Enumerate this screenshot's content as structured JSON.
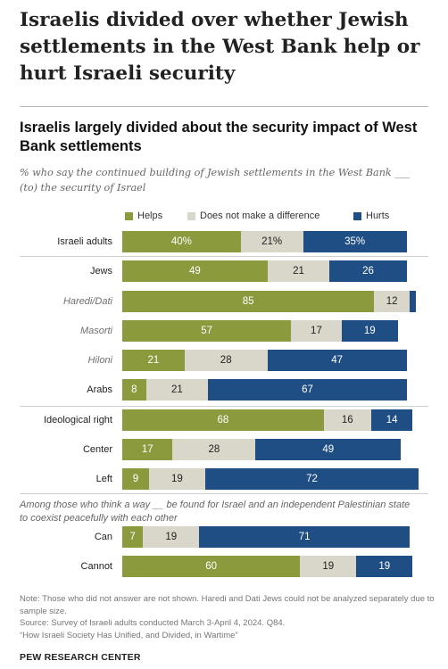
{
  "headline": "Israelis divided over whether Jewish settlements in the West Bank help or hurt Israeli security",
  "colors": {
    "helps": "#8a9a3d",
    "neutral": "#d9d6ca",
    "hurts": "#1f4e84",
    "separator": "#cfcfcf"
  },
  "chart_data": {
    "type": "bar",
    "stacked": true,
    "orientation": "horizontal",
    "title": "Israelis largely divided about the security impact of West Bank settlements",
    "subtitle": "% who say the continued building of Jewish settlements in the West Bank ___ (to) the security of Israel",
    "legend_position": "top",
    "series": [
      {
        "name": "Helps",
        "color": "#8a9a3d"
      },
      {
        "name": "Does not make a difference",
        "color": "#d9d6ca"
      },
      {
        "name": "Hurts",
        "color": "#1f4e84"
      }
    ],
    "categories": [
      "Israeli adults",
      "Jews",
      "Haredi/Dati",
      "Masorti",
      "Hiloni",
      "Arabs",
      "Ideological right",
      "Center",
      "Left",
      "Can",
      "Cannot"
    ],
    "rows": [
      {
        "label": "Israeli adults",
        "sub": false,
        "values": [
          40,
          21,
          35
        ],
        "labels": [
          "40%",
          "21%",
          "35%"
        ]
      },
      {
        "label": "Jews",
        "sub": false,
        "values": [
          49,
          21,
          26
        ],
        "labels": [
          "49",
          "21",
          "26"
        ]
      },
      {
        "label": "Haredi/Dati",
        "sub": true,
        "values": [
          85,
          12,
          2
        ],
        "labels": [
          "85",
          "12",
          ""
        ]
      },
      {
        "label": "Masorti",
        "sub": true,
        "values": [
          57,
          17,
          19
        ],
        "labels": [
          "57",
          "17",
          "19"
        ]
      },
      {
        "label": "Hiloni",
        "sub": true,
        "values": [
          21,
          28,
          47
        ],
        "labels": [
          "21",
          "28",
          "47"
        ]
      },
      {
        "label": "Arabs",
        "sub": false,
        "values": [
          8,
          21,
          67
        ],
        "labels": [
          "8",
          "21",
          "67"
        ]
      },
      {
        "label": "Ideological right",
        "sub": false,
        "values": [
          68,
          16,
          14
        ],
        "labels": [
          "68",
          "16",
          "14"
        ]
      },
      {
        "label": "Center",
        "sub": false,
        "values": [
          17,
          28,
          49
        ],
        "labels": [
          "17",
          "28",
          "49"
        ]
      },
      {
        "label": "Left",
        "sub": false,
        "values": [
          9,
          19,
          72
        ],
        "labels": [
          "9",
          "19",
          "72"
        ]
      },
      {
        "label": "Can",
        "sub": false,
        "values": [
          7,
          19,
          71
        ],
        "labels": [
          "7",
          "19",
          "71"
        ]
      },
      {
        "label": "Cannot",
        "sub": false,
        "values": [
          60,
          19,
          19
        ],
        "labels": [
          "60",
          "19",
          "19"
        ]
      }
    ],
    "group_note": "Among those who think a way __ be found for Israel and an independent Palestinian state to coexist peacefully with each other"
  },
  "footnote": {
    "note": "Note: Those who did not answer are not shown. Haredi and Dati Jews could not be analyzed separately due to sample size.",
    "source": "Source: Survey of Israeli adults conducted March 3-April 4, 2024. Q84.",
    "report": "“How Israeli Society Has Unified, and Divided, in Wartime”"
  },
  "brand": "PEW RESEARCH CENTER"
}
